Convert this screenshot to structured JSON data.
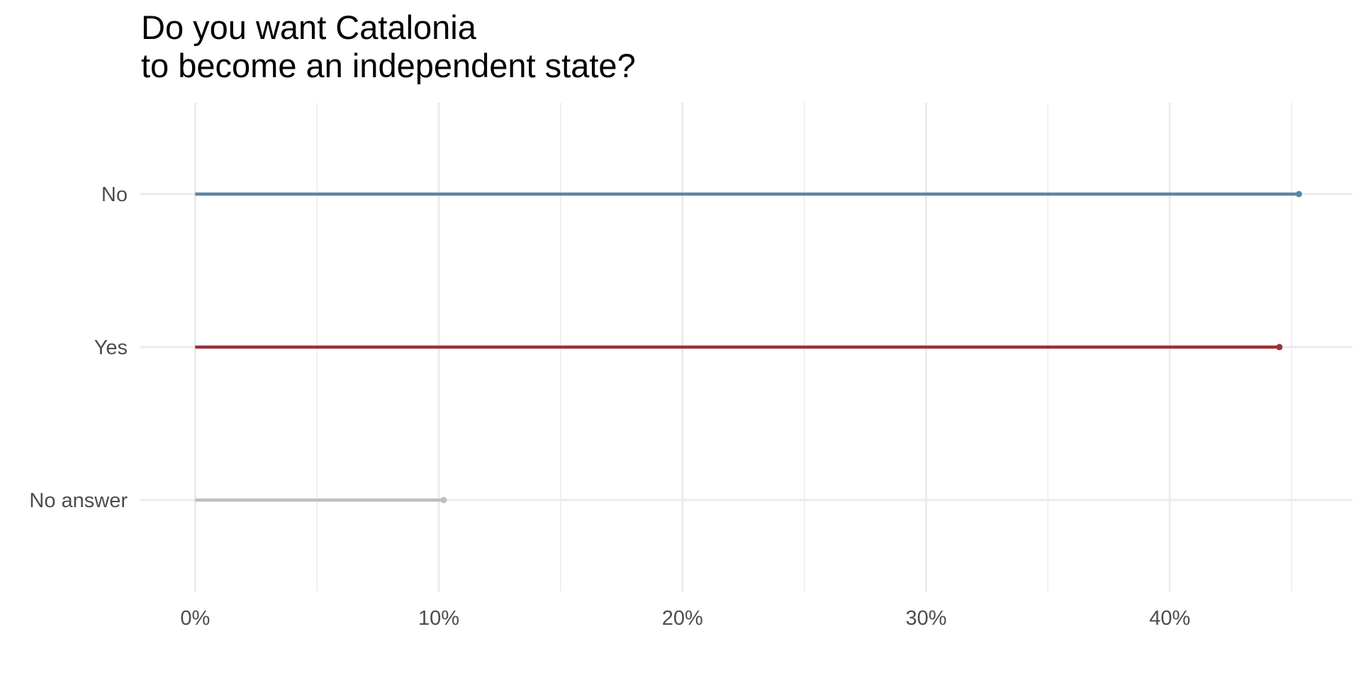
{
  "chart_data": {
    "type": "lollipop",
    "title_lines": [
      "Do you want Catalonia",
      "to become an independent state?"
    ],
    "xlabel": "",
    "ylabel": "",
    "categories": [
      "No",
      "Yes",
      "No answer"
    ],
    "values": [
      45.3,
      44.5,
      10.2
    ],
    "colors": [
      "#5b86a3",
      "#9b3138",
      "#bebebe"
    ],
    "xlim": [
      -2.25,
      47.5
    ],
    "x_ticks": [
      0,
      10,
      20,
      30,
      40
    ],
    "x_tick_labels": [
      "0%",
      "10%",
      "20%",
      "30%",
      "40%"
    ],
    "grid": true,
    "legend": "none"
  }
}
